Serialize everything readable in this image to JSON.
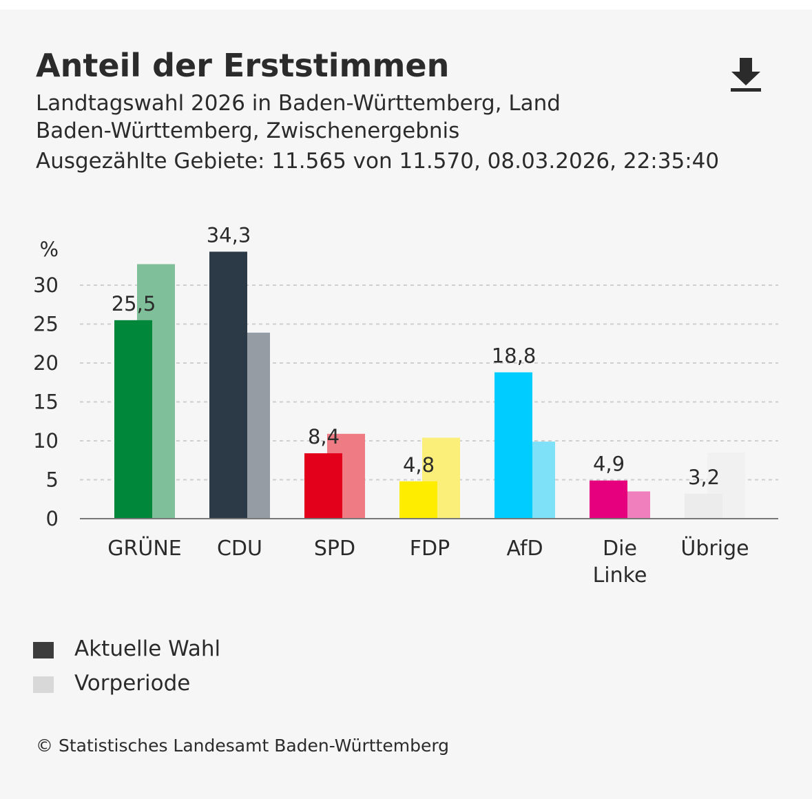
{
  "chart_data": {
    "type": "bar",
    "title": "Anteil der Erststimmen",
    "subtitle": [
      "Landtagswahl 2026 in Baden-Württemberg, Land",
      "Baden-Württemberg, Zwischenergebnis",
      "Ausgezählte Gebiete: 11.565 von 11.570, 08.03.2026, 22:35:40"
    ],
    "y_label": "%",
    "categories": [
      "GRÜNE",
      "CDU",
      "SPD",
      "FDP",
      "AfD",
      "Die Linke",
      "Übrige"
    ],
    "series": [
      {
        "name": "Aktuelle Wahl",
        "color": "#3c3c3c",
        "colors": [
          "#00873a",
          "#2c3a47",
          "#e2001a",
          "#ffed00",
          "#00ccff",
          "#e6007e",
          "#ececec"
        ],
        "values": [
          25.5,
          34.3,
          8.4,
          4.8,
          18.8,
          4.9,
          3.2
        ],
        "value_labels": [
          "25,5",
          "34,3",
          "8,4",
          "4,8",
          "18,8",
          "4,9",
          "3,2"
        ]
      },
      {
        "name": "Vorperiode",
        "color": "#d8d8d8",
        "colors": [
          "#7fc09a",
          "#959ca3",
          "#ef7c84",
          "#fbef7a",
          "#7fe1f8",
          "#ef80bd",
          "#f1f1f1"
        ],
        "values": [
          32.7,
          23.9,
          10.9,
          10.4,
          9.9,
          3.5,
          8.5
        ]
      }
    ],
    "ylim": [
      0,
      35
    ],
    "yticks": [
      0,
      5,
      10,
      15,
      20,
      25,
      30
    ],
    "grid": true,
    "source": "© Statistisches Landesamt Baden-Württemberg"
  }
}
